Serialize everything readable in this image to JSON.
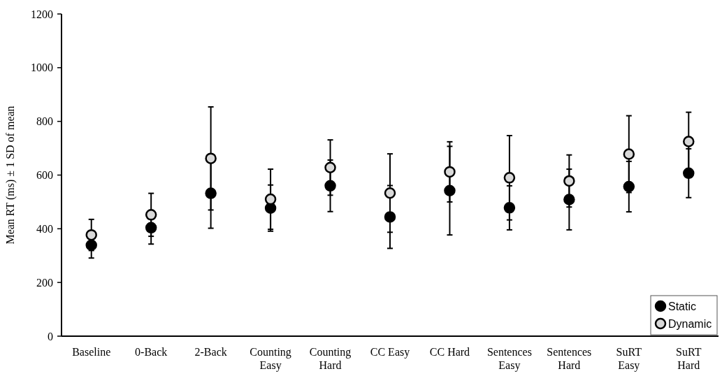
{
  "chart_data": {
    "type": "scatter",
    "ylabel": "Mean RT (ms) ± 1 SD of mean",
    "categories": [
      "Baseline",
      "0-Back",
      "2-Back",
      "Counting Easy",
      "Counting Hard",
      "CC Easy",
      "CC Hard",
      "Sentences Easy",
      "Sentences Hard",
      "SuRT Easy",
      "SuRT Hard"
    ],
    "series": [
      {
        "name": "Static",
        "color": "#000000",
        "values": [
          339,
          404,
          532,
          477,
          560,
          444,
          542,
          478,
          509,
          557,
          607
        ],
        "errors": [
          48,
          61,
          130,
          86,
          96,
          117,
          165,
          82,
          113,
          94,
          91
        ]
      },
      {
        "name": "Dynamic",
        "color": "#d9d9d9",
        "values": [
          377,
          452,
          662,
          510,
          628,
          533,
          612,
          590,
          578,
          678,
          725
        ],
        "errors": [
          58,
          80,
          192,
          112,
          103,
          146,
          112,
          157,
          97,
          143,
          109
        ]
      }
    ],
    "ylim": [
      0,
      1200
    ],
    "yticks": [
      0,
      200,
      400,
      600,
      800,
      1000,
      1200
    ],
    "marker": "circle",
    "legend": "bottom right",
    "grid": false
  }
}
